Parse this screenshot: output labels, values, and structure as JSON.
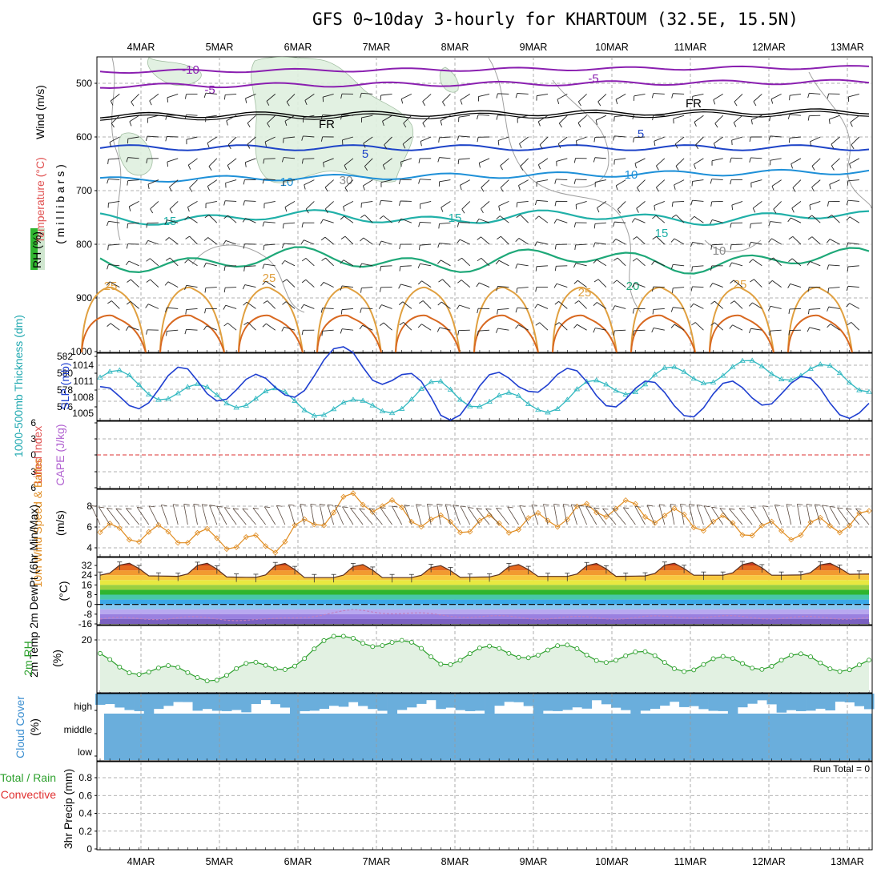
{
  "title": "GFS 0~10day 3-hourly for KHARTOUM (32.5E, 15.5N)",
  "dates": [
    "4MAR",
    "5MAR",
    "6MAR",
    "7MAR",
    "8MAR",
    "9MAR",
    "10MAR",
    "11MAR",
    "12MAR",
    "13MAR"
  ],
  "colors": {
    "grid": "#999999",
    "temp_purple": "#8a1fb0",
    "temp_dark_blue": "#1e44c8",
    "temp_light_blue": "#1e90d8",
    "temp_teal": "#20b0a8",
    "temp_green": "#1ea878",
    "temp_orange": "#e0a040",
    "temp_dark_orange": "#d86820",
    "thickness": "#30b8c0",
    "slp": "#1f3fd0",
    "wind10": "#e08c20",
    "rh2m": "#2ca02c",
    "cloud": "#6aaedc",
    "lifted_zero": "#dd3333"
  },
  "panels": {
    "upper_air": {
      "ylabel_wind": "Wind (m/s)",
      "ylabel_temp": "Temperature (°C)",
      "ylabel_rh": "RH (%)",
      "ylabel_pressure": "( m i l l i b a r s )",
      "yticks": [
        "500",
        "600",
        "700",
        "800",
        "900",
        "1000"
      ],
      "contour_labels": [
        "-10",
        "-5",
        "-5",
        "FR",
        "FR",
        "5",
        "5",
        "10",
        "10",
        "30",
        "15",
        "15",
        "15",
        "10",
        "20",
        "25",
        "25",
        "25",
        "25"
      ]
    },
    "thickness_slp": {
      "ylabel_left": "1000-500mb Thickness (dm)",
      "ylabel_right": "SLP (mb)",
      "yticks_left": [
        "582",
        "580",
        "578",
        "576"
      ],
      "yticks_right": [
        "1014",
        "1011",
        "1008",
        "1005"
      ]
    },
    "stability": {
      "ylabel_left": "Lifted Index",
      "ylabel_right": "CAPE (J/kg)",
      "yticks": [
        "6",
        "3",
        "0",
        "3",
        "6"
      ]
    },
    "wind10m": {
      "ylabel": "10m Wind Speed & Barbs",
      "yunit": "(m/s)",
      "yticks": [
        "8",
        "6",
        "4"
      ]
    },
    "temp2m": {
      "ylabel": "2m Temp 2m DewPt (6hr Min/Max)",
      "yunit": "(°C)",
      "yticks": [
        "32",
        "24",
        "16",
        "8",
        "0",
        "-8",
        "-16"
      ]
    },
    "rh2m": {
      "ylabel": "2m RH",
      "yunit": "(%)",
      "yticks": [
        "20"
      ]
    },
    "cloud": {
      "ylabel": "Cloud Cover",
      "yunit": "(%)",
      "levels": [
        "high",
        "middle",
        "low"
      ]
    },
    "precip": {
      "ylabel_left": "Total / Rain",
      "ylabel_left2": "Convective",
      "ylabel": "3hr Precip (mm)",
      "yticks": [
        "0.8",
        "0.6",
        "0.4",
        "0.2",
        "0"
      ],
      "run_total": "Run Total = 0"
    }
  },
  "chart_data": [
    {
      "type": "line",
      "panel": "thickness_slp",
      "title": "",
      "x": [
        "4MAR",
        "5MAR",
        "6MAR",
        "7MAR",
        "8MAR",
        "9MAR",
        "10MAR",
        "11MAR",
        "12MAR",
        "13MAR"
      ],
      "series": [
        {
          "name": "1000-500mb Thickness (dm)",
          "values": [
            579.5,
            577.5,
            577.0,
            575.5,
            578.0,
            576.0,
            578.5,
            580.0,
            580.5,
            579.0
          ]
        },
        {
          "name": "SLP (mb)",
          "values": [
            1007,
            1011,
            1009,
            1016,
            1006,
            1012,
            1009,
            1007,
            1010,
            1006
          ]
        }
      ],
      "ylim_left": [
        575,
        582
      ],
      "ylim_right": [
        1003,
        1016
      ]
    },
    {
      "type": "line",
      "panel": "wind10m",
      "x": [
        "4MAR",
        "5MAR",
        "6MAR",
        "7MAR",
        "8MAR",
        "9MAR",
        "10MAR",
        "11MAR",
        "12MAR",
        "13MAR"
      ],
      "series": [
        {
          "name": "10m Wind Speed (m/s)",
          "values": [
            5.5,
            5.2,
            4.2,
            8.8,
            6.2,
            6.3,
            8.0,
            6.5,
            5.5,
            6.8
          ]
        }
      ],
      "ylim": [
        3,
        9
      ]
    },
    {
      "type": "area",
      "panel": "temp2m",
      "x": [
        "4MAR",
        "5MAR",
        "6MAR",
        "7MAR",
        "8MAR",
        "9MAR",
        "10MAR",
        "11MAR",
        "12MAR",
        "13MAR"
      ],
      "series": [
        {
          "name": "2m Temp max (°C)",
          "values": [
            34,
            34,
            34,
            33,
            32,
            33,
            34,
            34,
            35,
            33
          ]
        },
        {
          "name": "2m Temp min (°C)",
          "values": [
            24,
            23,
            22,
            22,
            22,
            23,
            23,
            24,
            24,
            25
          ]
        },
        {
          "name": "2m DewPt (°C)",
          "values": [
            -12,
            -11,
            -13,
            -5,
            -9,
            -11,
            -11,
            -10,
            -11,
            -11
          ]
        }
      ],
      "ylim": [
        -20,
        36
      ]
    },
    {
      "type": "line",
      "panel": "rh2m",
      "x": [
        "4MAR",
        "5MAR",
        "6MAR",
        "7MAR",
        "8MAR",
        "9MAR",
        "10MAR",
        "11MAR",
        "12MAR",
        "13MAR"
      ],
      "series": [
        {
          "name": "2m RH (%)",
          "values": [
            12,
            6,
            9,
            22,
            13,
            16,
            14,
            10,
            12,
            10
          ]
        }
      ],
      "ylim": [
        0,
        26
      ]
    },
    {
      "type": "bar",
      "panel": "precip",
      "categories": [
        "4MAR",
        "5MAR",
        "6MAR",
        "7MAR",
        "8MAR",
        "9MAR",
        "10MAR",
        "11MAR",
        "12MAR",
        "13MAR"
      ],
      "series": [
        {
          "name": "3hr Precip (mm)",
          "values": [
            0,
            0,
            0,
            0,
            0,
            0,
            0,
            0,
            0,
            0
          ]
        }
      ],
      "ylim": [
        0,
        1
      ]
    }
  ]
}
